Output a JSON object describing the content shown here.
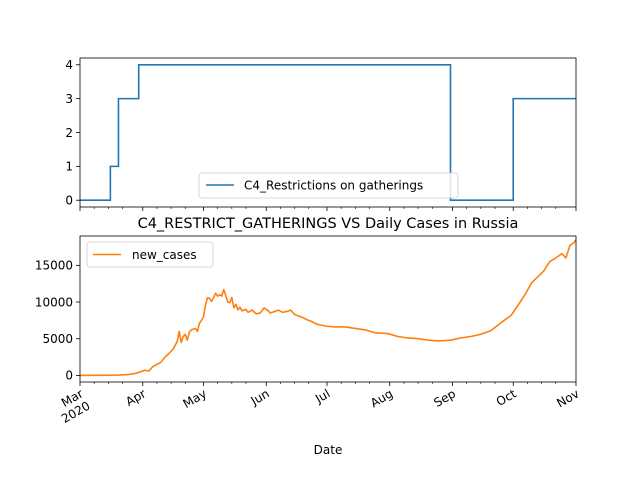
{
  "chart_data": [
    {
      "type": "line",
      "title": "",
      "xlabel": "",
      "ylabel": "",
      "ylim": [
        -0.2,
        4.2
      ],
      "yticks": [
        "0",
        "1",
        "2",
        "3",
        "4"
      ],
      "legend_position": "lower-center",
      "series": [
        {
          "name": "C4_Restrictions on gatherings",
          "color": "#1f77b4",
          "step": "post",
          "points": [
            [
              "2020-03-01",
              0
            ],
            [
              "2020-03-16",
              1
            ],
            [
              "2020-03-20",
              3
            ],
            [
              "2020-03-30",
              4
            ],
            [
              "2020-08-31",
              0
            ],
            [
              "2020-10-01",
              3
            ],
            [
              "2020-11-01",
              3
            ]
          ]
        }
      ]
    },
    {
      "type": "line",
      "title": "C4_RESTRICT_GATHERINGS VS Daily Cases in Russia",
      "xlabel": "Date",
      "ylabel": "",
      "ylim": [
        -900,
        19000
      ],
      "yticks": [
        "0",
        "5000",
        "10000",
        "15000"
      ],
      "legend_position": "upper-left",
      "xtick_labels": [
        {
          "month": "Mar",
          "year": "2020"
        },
        {
          "month": "Apr",
          "year": ""
        },
        {
          "month": "May",
          "year": ""
        },
        {
          "month": "Jun",
          "year": ""
        },
        {
          "month": "Jul",
          "year": ""
        },
        {
          "month": "Aug",
          "year": ""
        },
        {
          "month": "Sep",
          "year": ""
        },
        {
          "month": "Oct",
          "year": ""
        },
        {
          "month": "Nov",
          "year": ""
        }
      ],
      "series": [
        {
          "name": "new_cases",
          "color": "#ff7f0e",
          "points": [
            [
              "2020-03-01",
              0
            ],
            [
              "2020-03-10",
              5
            ],
            [
              "2020-03-15",
              20
            ],
            [
              "2020-03-20",
              50
            ],
            [
              "2020-03-25",
              120
            ],
            [
              "2020-03-28",
              250
            ],
            [
              "2020-03-31",
              500
            ],
            [
              "2020-04-02",
              700
            ],
            [
              "2020-04-04",
              600
            ],
            [
              "2020-04-06",
              1200
            ],
            [
              "2020-04-08",
              1500
            ],
            [
              "2020-04-10",
              1800
            ],
            [
              "2020-04-12",
              2500
            ],
            [
              "2020-04-14",
              3000
            ],
            [
              "2020-04-16",
              3600
            ],
            [
              "2020-04-18",
              4600
            ],
            [
              "2020-04-19",
              6000
            ],
            [
              "2020-04-20",
              4500
            ],
            [
              "2020-04-21",
              5300
            ],
            [
              "2020-04-22",
              5600
            ],
            [
              "2020-04-23",
              4800
            ],
            [
              "2020-04-24",
              5900
            ],
            [
              "2020-04-25",
              6200
            ],
            [
              "2020-04-26",
              6300
            ],
            [
              "2020-04-27",
              6400
            ],
            [
              "2020-04-28",
              6000
            ],
            [
              "2020-04-29",
              7100
            ],
            [
              "2020-04-30",
              7500
            ],
            [
              "2020-05-01",
              8000
            ],
            [
              "2020-05-02",
              9600
            ],
            [
              "2020-05-03",
              10600
            ],
            [
              "2020-05-04",
              10500
            ],
            [
              "2020-05-05",
              10100
            ],
            [
              "2020-05-06",
              10600
            ],
            [
              "2020-05-07",
              11200
            ],
            [
              "2020-05-08",
              10800
            ],
            [
              "2020-05-09",
              11000
            ],
            [
              "2020-05-10",
              10800
            ],
            [
              "2020-05-11",
              11700
            ],
            [
              "2020-05-12",
              10900
            ],
            [
              "2020-05-13",
              10000
            ],
            [
              "2020-05-14",
              9900
            ],
            [
              "2020-05-15",
              10600
            ],
            [
              "2020-05-16",
              9200
            ],
            [
              "2020-05-17",
              9700
            ],
            [
              "2020-05-18",
              8900
            ],
            [
              "2020-05-19",
              9300
            ],
            [
              "2020-05-20",
              8800
            ],
            [
              "2020-05-21",
              8900
            ],
            [
              "2020-05-22",
              9000
            ],
            [
              "2020-05-23",
              8600
            ],
            [
              "2020-05-25",
              8900
            ],
            [
              "2020-05-27",
              8400
            ],
            [
              "2020-05-29",
              8500
            ],
            [
              "2020-05-31",
              9200
            ],
            [
              "2020-06-01",
              9000
            ],
            [
              "2020-06-02",
              8800
            ],
            [
              "2020-06-03",
              8500
            ],
            [
              "2020-06-05",
              8700
            ],
            [
              "2020-06-07",
              8900
            ],
            [
              "2020-06-09",
              8600
            ],
            [
              "2020-06-11",
              8700
            ],
            [
              "2020-06-13",
              8900
            ],
            [
              "2020-06-15",
              8300
            ],
            [
              "2020-06-17",
              8100
            ],
            [
              "2020-06-19",
              7900
            ],
            [
              "2020-06-21",
              7600
            ],
            [
              "2020-06-23",
              7400
            ],
            [
              "2020-06-25",
              7100
            ],
            [
              "2020-06-27",
              6900
            ],
            [
              "2020-07-01",
              6700
            ],
            [
              "2020-07-05",
              6600
            ],
            [
              "2020-07-10",
              6600
            ],
            [
              "2020-07-15",
              6400
            ],
            [
              "2020-07-20",
              6200
            ],
            [
              "2020-07-25",
              5800
            ],
            [
              "2020-07-31",
              5700
            ],
            [
              "2020-08-05",
              5300
            ],
            [
              "2020-08-10",
              5100
            ],
            [
              "2020-08-15",
              5000
            ],
            [
              "2020-08-20",
              4800
            ],
            [
              "2020-08-25",
              4700
            ],
            [
              "2020-08-31",
              4800
            ],
            [
              "2020-09-05",
              5100
            ],
            [
              "2020-09-10",
              5300
            ],
            [
              "2020-09-15",
              5600
            ],
            [
              "2020-09-20",
              6100
            ],
            [
              "2020-09-25",
              7200
            ],
            [
              "2020-09-30",
              8200
            ],
            [
              "2020-10-03",
              9400
            ],
            [
              "2020-10-07",
              11100
            ],
            [
              "2020-10-10",
              12600
            ],
            [
              "2020-10-13",
              13400
            ],
            [
              "2020-10-16",
              14200
            ],
            [
              "2020-10-19",
              15500
            ],
            [
              "2020-10-22",
              16000
            ],
            [
              "2020-10-25",
              16600
            ],
            [
              "2020-10-27",
              16000
            ],
            [
              "2020-10-29",
              17700
            ],
            [
              "2020-10-31",
              18100
            ],
            [
              "2020-11-01",
              18500
            ]
          ]
        }
      ]
    }
  ]
}
